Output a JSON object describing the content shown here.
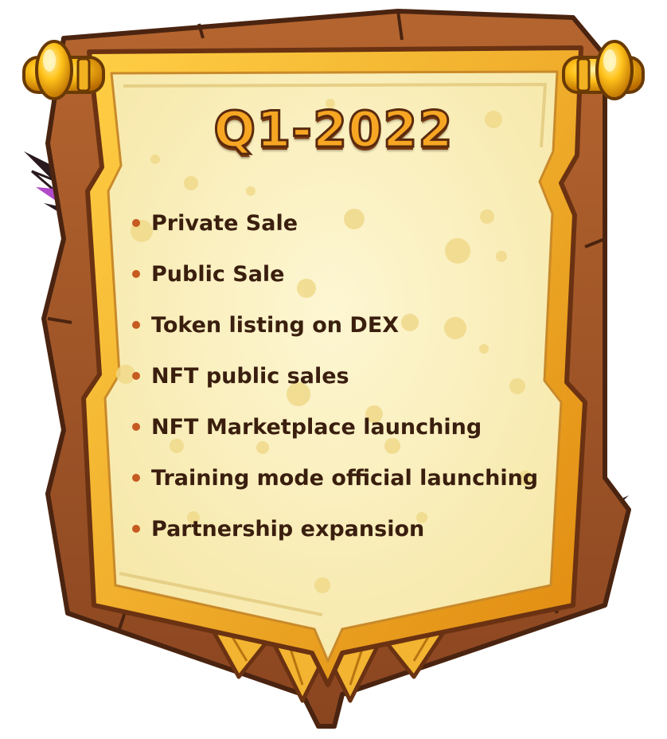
{
  "title": "Q1-2022",
  "milestones": [
    "Private Sale",
    "Public Sale",
    "Token listing on DEX",
    "NFT public sales",
    "NFT Marketplace launching",
    "Training mode official launching",
    "Partnership expansion"
  ],
  "colors": {
    "wood": "#a65a2b",
    "wood_dark": "#5a2a0e",
    "frame_gold": "#f2a51a",
    "parchment": "#fbf2c4",
    "title_fill": "#f6a623",
    "bullet": "#c65b21",
    "text": "#3a1e0e"
  },
  "icons": [
    "scroll-frame",
    "gold-rod-knob",
    "feathers"
  ]
}
